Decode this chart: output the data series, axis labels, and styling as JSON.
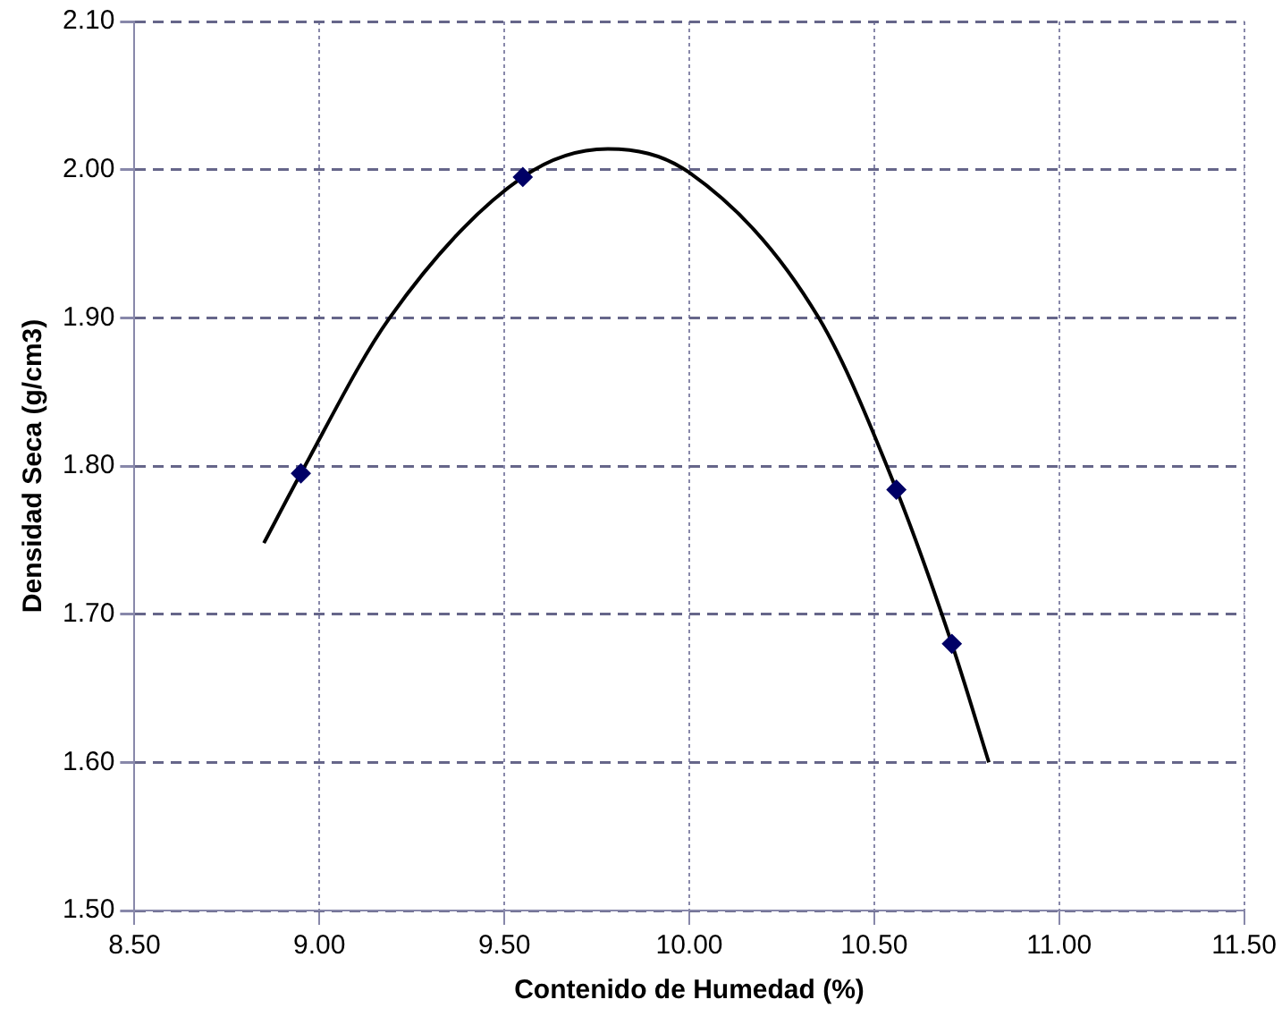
{
  "chart_data": {
    "type": "scatter",
    "xlabel": "Contenido de Humedad (%)",
    "ylabel": "Densidad Seca (g/cm3)",
    "xlim": [
      8.5,
      11.5
    ],
    "xticks": [
      {
        "value": 8.5,
        "label": "8.50"
      },
      {
        "value": 9,
        "label": "9.00"
      },
      {
        "value": 9.5,
        "label": "9.50"
      },
      {
        "value": 10,
        "label": "10.00"
      },
      {
        "value": 10.5,
        "label": "10.50"
      },
      {
        "value": 11,
        "label": "11.00"
      },
      {
        "value": 11.5,
        "label": "11.50"
      }
    ],
    "ylim": [
      1.5,
      2.1
    ],
    "yticks": [
      {
        "value": 1.5,
        "label": "1.50"
      },
      {
        "value": 1.6,
        "label": "1.60"
      },
      {
        "value": 1.7,
        "label": "1.70"
      },
      {
        "value": 1.8,
        "label": "1.80"
      },
      {
        "value": 1.9,
        "label": "1.90"
      },
      {
        "value": 2,
        "label": "2.00"
      },
      {
        "value": 2.1,
        "label": "2.10"
      }
    ],
    "grid": true,
    "legend": false,
    "series": [
      {
        "color": "#000066",
        "marker": "diamond",
        "x": [
          8.95,
          9.55,
          10.56,
          10.71
        ],
        "values": [
          1.795,
          1.995,
          1.784,
          1.68
        ]
      },
      {
        "type": "line",
        "color": "#000000",
        "marker": "none",
        "x": [
          8.85,
          8.95,
          9.19,
          9.55,
          9.78,
          10.0,
          10.35,
          10.56,
          10.71,
          10.81
        ],
        "values": [
          1.748,
          1.795,
          1.9,
          1.995,
          2.014,
          1.998,
          1.9,
          1.784,
          1.68,
          1.6
        ]
      }
    ]
  }
}
